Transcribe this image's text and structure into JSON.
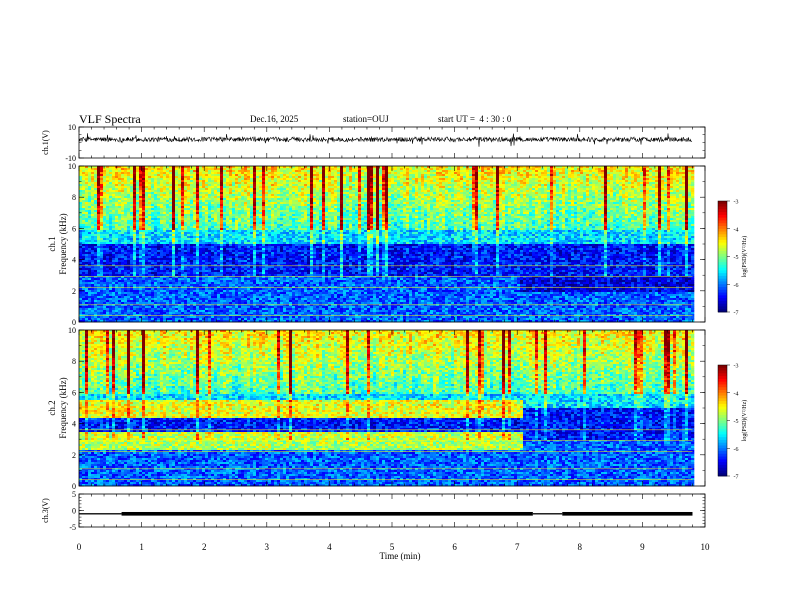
{
  "header": {
    "title": "VLF Spectra",
    "date": "Dec.16, 2025",
    "station": "station=OUJ",
    "start": "start UT =  4 : 30 : 0"
  },
  "chart_data": [
    {
      "type": "line",
      "name": "ch1-waveform",
      "ylabel": "ch.1(V)",
      "ylim": [
        -10,
        10
      ],
      "yticks": [
        "10",
        "-10"
      ],
      "description_series": "broadband waveform, baseline about +2 V with noise",
      "baseline": 2
    },
    {
      "type": "heatmap",
      "name": "ch1-spectrogram",
      "ylabel": "Frequency (kHz)",
      "panel_label": "ch.1",
      "ylim": [
        0,
        10
      ],
      "yticks": [
        "0",
        "2",
        "4",
        "6",
        "8",
        "10"
      ],
      "xlim": [
        0,
        10
      ],
      "data_end_min": 9.8,
      "colorbar": {
        "label": "log(PSD)(V²/Hz)",
        "range": [
          -7,
          -3
        ],
        "ticks": [
          "-3",
          "-4",
          "-5",
          "-6",
          "-7"
        ]
      }
    },
    {
      "type": "heatmap",
      "name": "ch2-spectrogram",
      "ylabel": "Frequency (kHz)",
      "panel_label": "ch.2",
      "ylim": [
        0,
        10
      ],
      "yticks": [
        "0",
        "2",
        "4",
        "6",
        "8",
        "10"
      ],
      "xlim": [
        0,
        10
      ],
      "data_end_min": 9.8,
      "band_end_min": 7.05,
      "colorbar": {
        "label": "log(PSD)(V²/Hz)",
        "range": [
          -7,
          -3
        ],
        "ticks": [
          "-3",
          "-4",
          "-5",
          "-6",
          "-7"
        ]
      }
    },
    {
      "type": "line",
      "name": "ch3-waveform",
      "ylabel": "ch.3(V)",
      "ylim": [
        -5,
        5
      ],
      "yticks": [
        "5",
        "0",
        "-5"
      ],
      "thin_level": -1,
      "segments": [
        [
          0.0,
          0.68,
          0.2
        ],
        [
          0.68,
          7.25,
          0.55
        ],
        [
          7.25,
          7.72,
          0.2
        ],
        [
          7.72,
          9.8,
          0.55
        ]
      ]
    }
  ],
  "xaxis": {
    "label": "Time (min)",
    "range": [
      0,
      10
    ],
    "ticks": [
      "0",
      "1",
      "2",
      "3",
      "4",
      "5",
      "6",
      "7",
      "8",
      "9",
      "10"
    ]
  },
  "colors": {
    "colormap": [
      "#00007f",
      "#0000ff",
      "#00ffff",
      "#00ff00",
      "#ffff00",
      "#ff0000",
      "#7f0000"
    ]
  }
}
